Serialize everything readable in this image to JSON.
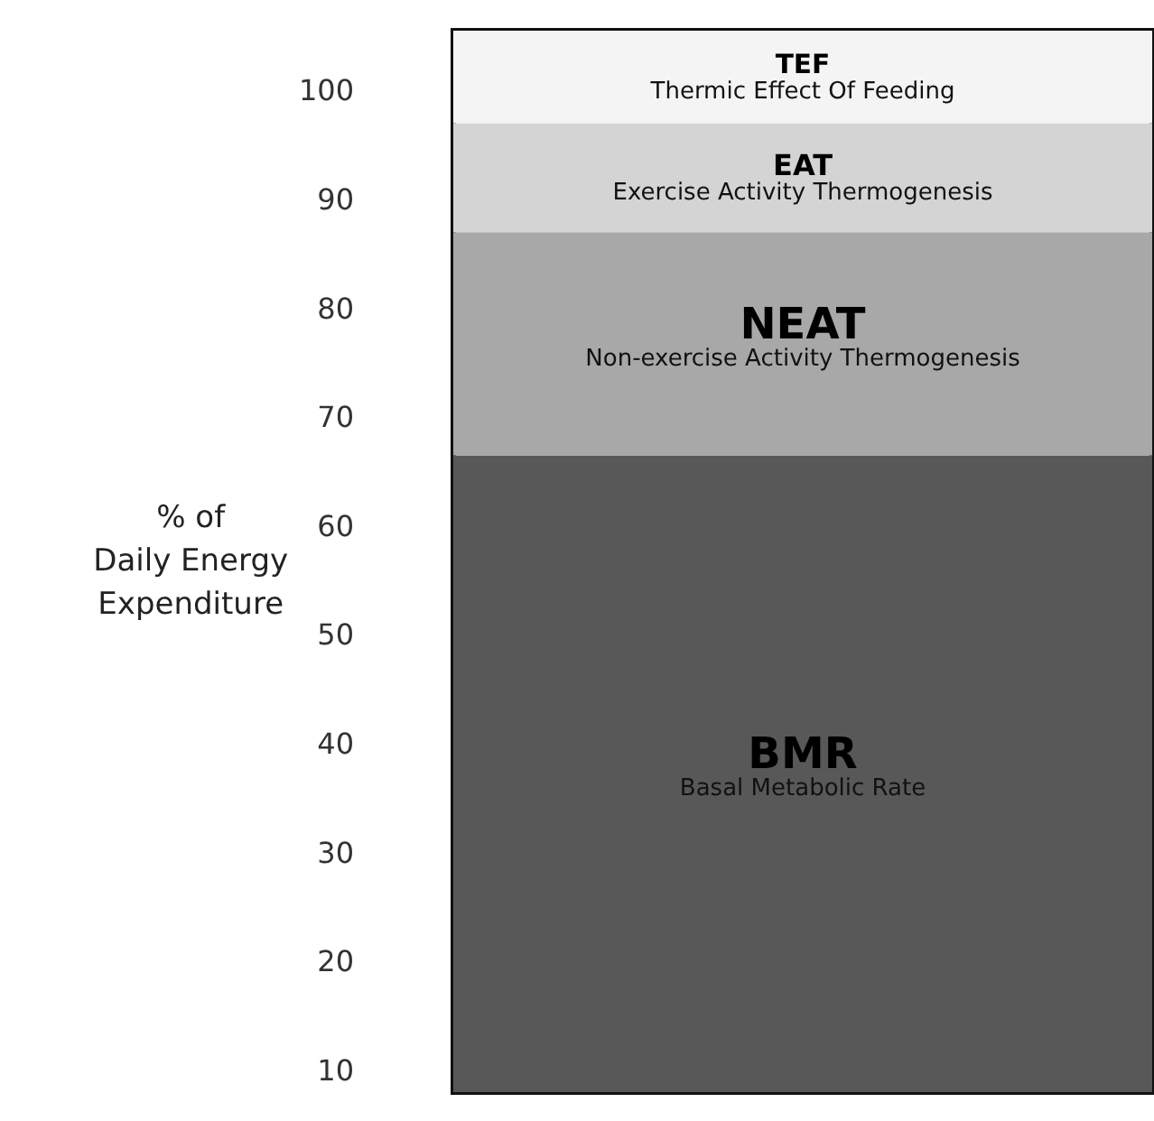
{
  "chart_data": {
    "type": "bar",
    "stacked": true,
    "ylabel": "% of\nDaily Energy\nExpenditure",
    "categories": [
      null
    ],
    "series": [
      {
        "name": "BMR",
        "color": "#585858",
        "values": [
          66.5
        ]
      },
      {
        "name": "NEAT",
        "color": "#a8a8a8",
        "values": [
          20.5
        ]
      },
      {
        "name": "EAT",
        "color": "#d4d4d4",
        "values": [
          10
        ]
      },
      {
        "name": "TEF",
        "color": "#f4f4f4",
        "values": [
          8.5
        ]
      }
    ],
    "annotations": [
      "Basal Metabolic Rate",
      "Non-exercise Activity Thermogenesis",
      "Exercise Activity Thermogenesis",
      "Thermic Effect Of Feeding"
    ],
    "ylim": [
      8,
      105.5
    ],
    "yticks": [
      10,
      20,
      30,
      40,
      50,
      60,
      70,
      80,
      90,
      100
    ],
    "grid": false,
    "legend": false
  }
}
